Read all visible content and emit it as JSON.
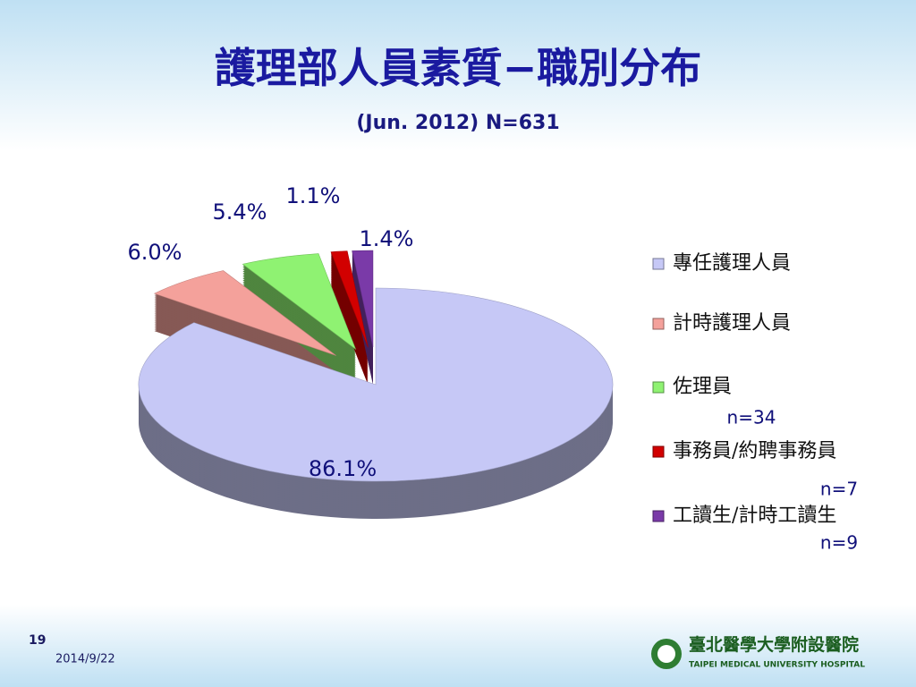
{
  "chart_data": {
    "type": "pie",
    "title": "護理部人員素質−職別分布",
    "subtitle": "(Jun. 2012) N=631",
    "categories": [
      "專任護理人員",
      "計時護理人員",
      "佐理員",
      "事務員/約聘事務員",
      "工讀生/計時工讀生"
    ],
    "values": [
      86.1,
      6.0,
      5.4,
      1.1,
      1.4
    ],
    "value_labels": [
      "86.1%",
      "6.0%",
      "5.4%",
      "1.1%",
      "1.4%"
    ],
    "colors": [
      "#c6c8f6",
      "#f4a19b",
      "#8ff272",
      "#d20000",
      "#7a3aa8"
    ],
    "annotations": [
      "n=34",
      "n=7",
      "n=9"
    ],
    "legend": "right"
  },
  "footer": {
    "page": "19",
    "date": "2014/9/22",
    "logo_name": "臺北醫學大學附設醫院",
    "logo_english": "TAIPEI MEDICAL UNIVERSITY HOSPITAL"
  }
}
